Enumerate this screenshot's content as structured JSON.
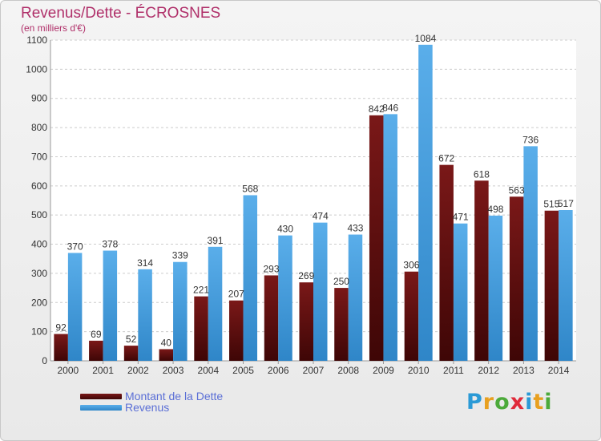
{
  "header": {
    "title": "Revenus/Dette - ÉCROSNES",
    "subtitle": "(en milliers d'€)"
  },
  "legend": {
    "debt_label": "Montant de la Dette",
    "revenue_label": "Revenus"
  },
  "logo": {
    "text": "Proxiti",
    "letters": [
      {
        "ch": "P",
        "color": "#2b9ad6"
      },
      {
        "ch": "r",
        "color": "#e8a020"
      },
      {
        "ch": "o",
        "color": "#4caa3a"
      },
      {
        "ch": "x",
        "color": "#e02a3a"
      },
      {
        "ch": "i",
        "color": "#2b9ad6"
      },
      {
        "ch": "t",
        "color": "#e8a020"
      },
      {
        "ch": "i",
        "color": "#4caa3a"
      }
    ]
  },
  "colors": {
    "debt": "#7a1818",
    "debt_dark": "#3e0606",
    "revenue": "#5aaeea",
    "revenue_dark": "#2f86c8",
    "grid": "#cccccc",
    "axis_text": "#333333",
    "value_text": "#333333"
  },
  "chart_data": {
    "type": "bar",
    "title": "Revenus/Dette - ÉCROSNES",
    "subtitle": "(en milliers d'€)",
    "xlabel": "",
    "ylabel": "",
    "ylim": [
      0,
      1100
    ],
    "yticks": [
      0,
      100,
      200,
      300,
      400,
      500,
      600,
      700,
      800,
      900,
      1000,
      1100
    ],
    "grid": true,
    "legend_position": "bottom-left",
    "categories": [
      "2000",
      "2001",
      "2002",
      "2003",
      "2004",
      "2005",
      "2006",
      "2007",
      "2008",
      "2009",
      "2010",
      "2011",
      "2012",
      "2013",
      "2014"
    ],
    "series": [
      {
        "name": "Montant de la Dette",
        "values": [
          92,
          69,
          52,
          40,
          221,
          207,
          293,
          269,
          250,
          842,
          306,
          672,
          618,
          563,
          515
        ]
      },
      {
        "name": "Revenus",
        "values": [
          370,
          378,
          314,
          339,
          391,
          568,
          430,
          474,
          433,
          846,
          1084,
          471,
          498,
          736,
          517
        ]
      }
    ]
  }
}
